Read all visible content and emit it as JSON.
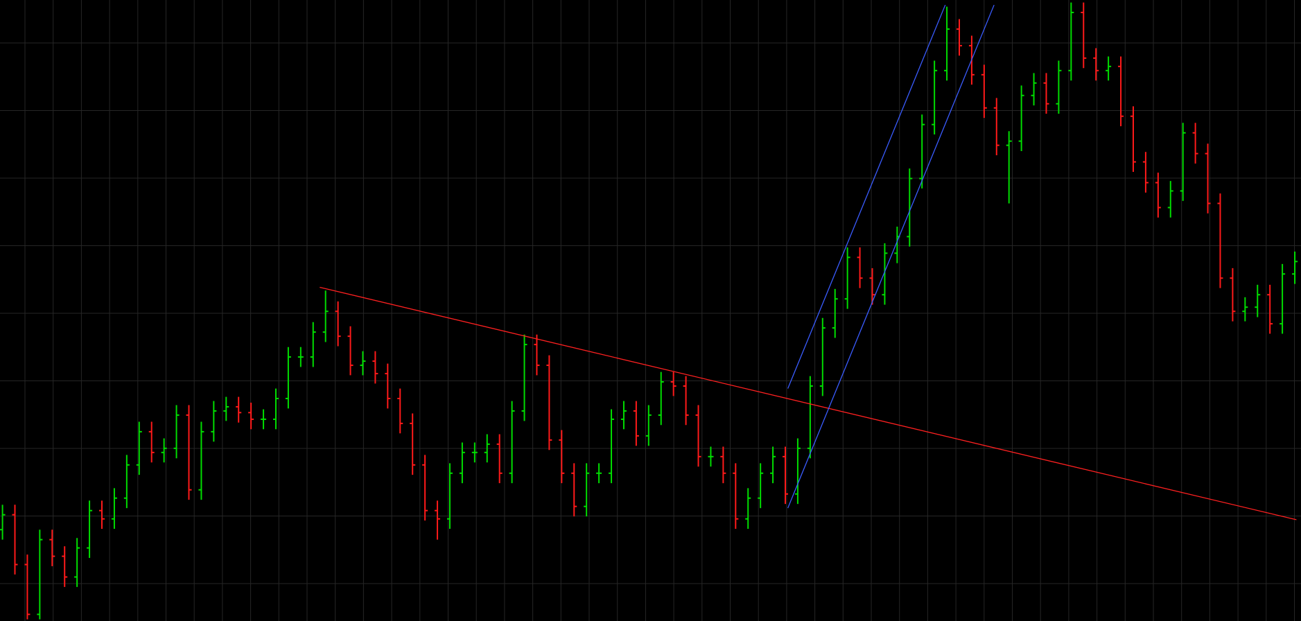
{
  "chart_data": {
    "type": "ohlc",
    "xlim": [
      -0.2,
      104.5
    ],
    "ylim": [
      0,
      748
    ],
    "up_color": "#00dd00",
    "down_color": "#ff1a1a",
    "open": [
      110,
      128,
      68,
      8,
      98,
      78,
      53,
      88,
      133,
      123,
      148,
      188,
      228,
      203,
      208,
      248,
      158,
      228,
      253,
      258,
      251,
      243,
      243,
      268,
      318,
      318,
      348,
      373,
      343,
      308,
      313,
      298,
      268,
      238,
      188,
      133,
      123,
      178,
      203,
      203,
      213,
      178,
      253,
      333,
      308,
      218,
      178,
      138,
      178,
      178,
      243,
      253,
      223,
      248,
      288,
      283,
      248,
      198,
      198,
      178,
      123,
      148,
      178,
      198,
      153,
      208,
      283,
      353,
      388,
      438,
      413,
      393,
      443,
      463,
      533,
      598,
      663,
      713,
      693,
      658,
      618,
      573,
      578,
      633,
      648,
      623,
      663,
      733,
      678,
      663,
      668,
      608,
      553,
      528,
      498,
      518,
      588,
      563,
      503,
      413,
      373,
      378,
      393,
      358,
      418
    ],
    "high": [
      140,
      140,
      80,
      110,
      110,
      90,
      100,
      145,
      145,
      160,
      200,
      240,
      240,
      220,
      260,
      260,
      240,
      265,
      270,
      270,
      263,
      255,
      280,
      330,
      330,
      360,
      398,
      385,
      355,
      325,
      325,
      310,
      280,
      250,
      200,
      145,
      190,
      215,
      215,
      225,
      225,
      265,
      345,
      345,
      320,
      230,
      190,
      190,
      190,
      255,
      265,
      265,
      260,
      300,
      300,
      295,
      260,
      210,
      210,
      190,
      160,
      190,
      210,
      210,
      220,
      295,
      365,
      400,
      450,
      450,
      425,
      455,
      475,
      545,
      610,
      675,
      740,
      725,
      705,
      670,
      630,
      590,
      645,
      660,
      660,
      675,
      745,
      745,
      690,
      680,
      680,
      620,
      565,
      540,
      530,
      600,
      600,
      575,
      515,
      425,
      390,
      405,
      405,
      430,
      445
    ],
    "low": [
      98,
      56,
      2,
      2,
      66,
      41,
      41,
      76,
      111,
      111,
      136,
      176,
      191,
      191,
      196,
      146,
      146,
      216,
      241,
      239,
      231,
      231,
      231,
      256,
      306,
      306,
      336,
      331,
      296,
      296,
      286,
      256,
      226,
      176,
      121,
      98,
      111,
      166,
      191,
      191,
      166,
      166,
      241,
      296,
      206,
      166,
      126,
      126,
      166,
      166,
      231,
      211,
      211,
      236,
      271,
      236,
      186,
      186,
      166,
      111,
      111,
      136,
      166,
      141,
      141,
      196,
      271,
      341,
      376,
      401,
      381,
      381,
      431,
      451,
      521,
      586,
      651,
      681,
      646,
      606,
      561,
      503,
      566,
      621,
      611,
      611,
      651,
      666,
      651,
      651,
      596,
      541,
      516,
      486,
      486,
      506,
      551,
      491,
      401,
      361,
      361,
      366,
      346,
      346,
      406
    ],
    "close": [
      128,
      68,
      8,
      98,
      78,
      53,
      88,
      133,
      123,
      148,
      188,
      228,
      203,
      208,
      248,
      158,
      228,
      253,
      258,
      251,
      243,
      243,
      268,
      318,
      318,
      348,
      373,
      343,
      308,
      313,
      298,
      268,
      238,
      188,
      133,
      123,
      178,
      203,
      203,
      213,
      178,
      253,
      333,
      308,
      218,
      178,
      138,
      178,
      178,
      243,
      253,
      223,
      248,
      288,
      283,
      248,
      198,
      198,
      178,
      123,
      148,
      178,
      198,
      153,
      208,
      283,
      353,
      388,
      438,
      413,
      393,
      443,
      463,
      533,
      598,
      663,
      713,
      693,
      658,
      618,
      573,
      578,
      633,
      648,
      623,
      663,
      733,
      678,
      663,
      668,
      608,
      553,
      528,
      498,
      518,
      588,
      563,
      503,
      413,
      373,
      378,
      393,
      358,
      418,
      433
    ],
    "lines": [
      {
        "color": "#ff2020",
        "x": [
          25.53,
          104.13
        ],
        "y": [
          402,
          122
        ]
      },
      {
        "color": "#3a5cff",
        "x": [
          63.2,
          79.8
        ],
        "y": [
          136,
          742
        ]
      },
      {
        "color": "#3a5cff",
        "x": [
          63.2,
          75.87
        ],
        "y": [
          280,
          742
        ]
      }
    ]
  }
}
